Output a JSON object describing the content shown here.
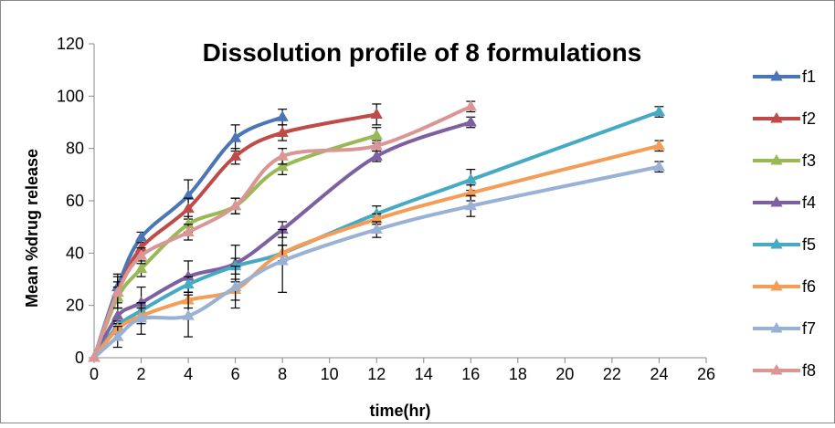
{
  "chart_data": {
    "type": "line",
    "title": "Dissolution profile of 8 formulations",
    "xlabel": "time(hr)",
    "ylabel": "Mean %drug release",
    "xlim": [
      0,
      26
    ],
    "ylim": [
      0,
      120
    ],
    "x_ticks": [
      "0",
      "2",
      "4",
      "6",
      "8",
      "10",
      "12",
      "14",
      "16",
      "18",
      "20",
      "22",
      "24",
      "26"
    ],
    "y_ticks": [
      "0",
      "20",
      "40",
      "60",
      "80",
      "100",
      "120"
    ],
    "grid": false,
    "legend_position": "right",
    "error_bars": true,
    "series": [
      {
        "name": "f1",
        "color": "#4a76b8",
        "x": [
          0,
          1,
          2,
          4,
          6,
          8
        ],
        "y": [
          0,
          27,
          46,
          62,
          84,
          92
        ],
        "err": [
          0,
          5,
          2,
          6,
          5,
          3
        ]
      },
      {
        "name": "f2",
        "color": "#be4b48",
        "x": [
          0,
          1,
          2,
          4,
          6,
          8,
          12
        ],
        "y": [
          0,
          25,
          42,
          57,
          77,
          86,
          93
        ],
        "err": [
          0,
          4,
          2,
          4,
          3,
          3,
          4
        ]
      },
      {
        "name": "f3",
        "color": "#98b954",
        "x": [
          0,
          1,
          2,
          4,
          6,
          8,
          12
        ],
        "y": [
          0,
          23,
          34,
          51,
          58,
          73,
          85
        ],
        "err": [
          0,
          4,
          3,
          3,
          3,
          3,
          3
        ]
      },
      {
        "name": "f4",
        "color": "#7d60a0",
        "x": [
          0,
          1,
          2,
          4,
          6,
          8,
          12,
          16
        ],
        "y": [
          0,
          16,
          21,
          31,
          36,
          49,
          77,
          90
        ],
        "err": [
          0,
          3,
          6,
          6,
          7,
          3,
          2,
          2
        ]
      },
      {
        "name": "f5",
        "color": "#46aac5",
        "x": [
          0,
          1,
          2,
          4,
          6,
          8,
          12,
          16,
          24
        ],
        "y": [
          0,
          12,
          18,
          28,
          35,
          40,
          55,
          68,
          94
        ],
        "err": [
          0,
          2,
          3,
          3,
          3,
          3,
          3,
          4,
          2
        ]
      },
      {
        "name": "f6",
        "color": "#f59d56",
        "x": [
          0,
          1,
          2,
          4,
          6,
          8,
          12,
          16,
          24
        ],
        "y": [
          0,
          11,
          16,
          22,
          26,
          40,
          53,
          63,
          81
        ],
        "err": [
          0,
          2,
          3,
          3,
          4,
          3,
          2,
          3,
          2
        ]
      },
      {
        "name": "f7",
        "color": "#9ab1d6",
        "x": [
          0,
          1,
          2,
          4,
          6,
          8,
          12,
          16,
          24
        ],
        "y": [
          0,
          8,
          15,
          16,
          27,
          37,
          49,
          58,
          73
        ],
        "err": [
          0,
          4,
          6,
          8,
          8,
          12,
          3,
          4,
          2
        ]
      },
      {
        "name": "f8",
        "color": "#d99694",
        "x": [
          0,
          1,
          2,
          4,
          6,
          8,
          12,
          16
        ],
        "y": [
          0,
          25,
          39,
          48,
          58,
          77,
          81,
          96
        ],
        "err": [
          0,
          6,
          3,
          3,
          3,
          3,
          2,
          2
        ]
      }
    ]
  }
}
